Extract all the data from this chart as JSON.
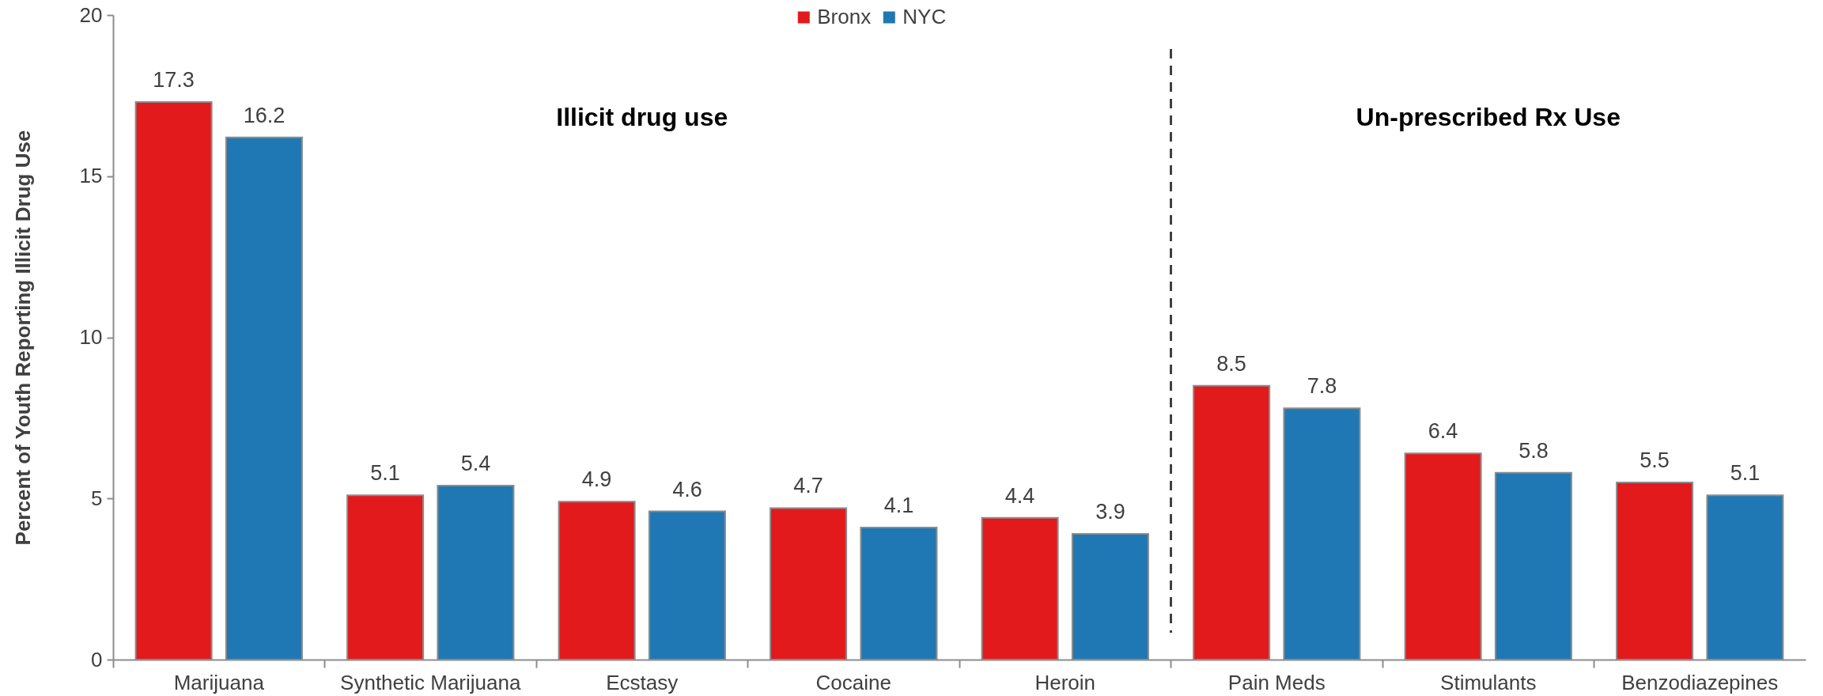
{
  "chart_data": {
    "type": "bar",
    "ylabel": "Percent of Youth Reporting Illicit Drug Use",
    "categories": [
      "Marijuana",
      "Synthetic Marijuana",
      "Ecstasy",
      "Cocaine",
      "Heroin",
      "Pain Meds",
      "Stimulants",
      "Benzodiazepines"
    ],
    "series": [
      {
        "name": "Bronx",
        "color": "#e31a1c",
        "values": [
          17.3,
          5.1,
          4.9,
          4.7,
          4.4,
          8.5,
          6.4,
          5.5
        ]
      },
      {
        "name": "NYC",
        "color": "#1f78b4",
        "values": [
          16.2,
          5.4,
          4.6,
          4.1,
          3.9,
          7.8,
          5.8,
          5.1
        ]
      }
    ],
    "ylim": [
      0,
      20
    ],
    "yticks": [
      0,
      5,
      10,
      15,
      20
    ],
    "data_labels": true,
    "legend": "top",
    "grid": false,
    "annotations": [
      "Illicit drug use",
      "Un-prescribed Rx Use"
    ]
  }
}
